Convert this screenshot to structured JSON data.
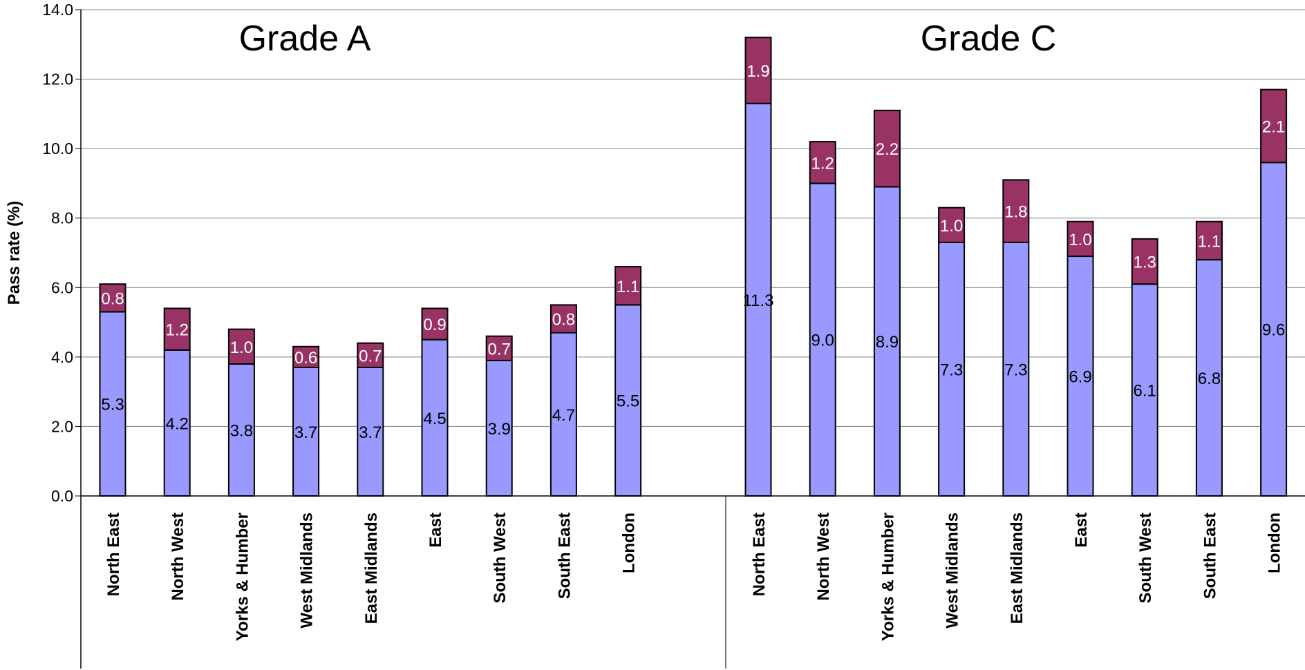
{
  "chart_data": {
    "type": "bar",
    "stacked": true,
    "ylabel": "Pass rate (%)",
    "ylim": [
      0,
      14
    ],
    "yticks": [
      "0.0",
      "2.0",
      "4.0",
      "6.0",
      "8.0",
      "10.0",
      "12.0",
      "14.0"
    ],
    "grid": true,
    "colors": {
      "base": "#9999FF",
      "top": "#993366",
      "outline": "#000000"
    },
    "groups": [
      {
        "title": "Grade A",
        "categories": [
          "North East",
          "North West",
          "Yorks & Humber",
          "West Midlands",
          "East Midlands",
          "East",
          "South West",
          "South East",
          "London"
        ],
        "series": [
          {
            "values": [
              5.3,
              4.2,
              3.8,
              3.7,
              3.7,
              4.5,
              3.9,
              4.7,
              5.5
            ]
          },
          {
            "values": [
              0.8,
              1.2,
              1.0,
              0.6,
              0.7,
              0.9,
              0.7,
              0.8,
              1.1
            ]
          }
        ],
        "labels_base": [
          "5.3",
          "4.2",
          "3.8",
          "3.7",
          "3.7",
          "4.5",
          "3.9",
          "4.7",
          "5.5"
        ],
        "labels_top": [
          "0.8",
          "1.2",
          "1.0",
          "0.6",
          "0.7",
          "0.9",
          "0.7",
          "0.8",
          "1.1"
        ]
      },
      {
        "title": "Grade C",
        "categories": [
          "North East",
          "North West",
          "Yorks & Humber",
          "West Midlands",
          "East Midlands",
          "East",
          "South West",
          "South East",
          "London"
        ],
        "series": [
          {
            "values": [
              11.3,
              9.0,
              8.9,
              7.3,
              7.3,
              6.9,
              6.1,
              6.8,
              9.6
            ]
          },
          {
            "values": [
              1.9,
              1.2,
              2.2,
              1.0,
              1.8,
              1.0,
              1.3,
              1.1,
              2.1
            ]
          }
        ],
        "labels_base": [
          "11.3",
          "9.0",
          "8.9",
          "7.3",
          "7.3",
          "6.9",
          "6.1",
          "6.8",
          "9.6"
        ],
        "labels_top": [
          "1.9",
          "1.2",
          "2.2",
          "1.0",
          "1.8",
          "1.0",
          "1.3",
          "1.1",
          "2.1"
        ]
      }
    ]
  }
}
